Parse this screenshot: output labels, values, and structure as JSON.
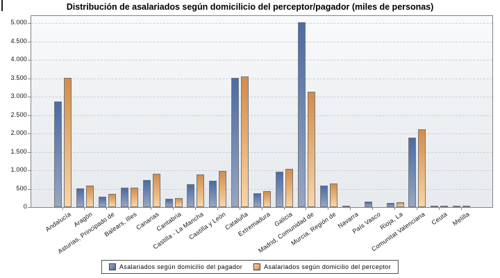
{
  "chart_data": {
    "type": "bar",
    "title": "Distribución de asalariados según domicilicio del perceptor/pagador (miles de personas)",
    "categories": [
      "Andalucía",
      "Aragón",
      "Asturias, Principado de",
      "Balears, Illes",
      "Canarias",
      "Cantabria",
      "Castilla - La Mancha",
      "Castilla y León",
      "Cataluña",
      "Extremadura",
      "Galicia",
      "Madrid, Comunidad de",
      "Murcia, Región de",
      "Navarra",
      "País Vasco",
      "Rioja, La",
      "Comunitat Valenciana",
      "Ceuta",
      "Melilla"
    ],
    "series": [
      {
        "name": "Asalariados según domicilio del pagador",
        "color": "#5277af",
        "color_top": "#4a6ba6",
        "color_bottom": "#97a7c2",
        "values": [
          2870,
          510,
          290,
          520,
          740,
          220,
          620,
          720,
          3500,
          370,
          960,
          5010,
          580,
          40,
          160,
          110,
          1890,
          20,
          20
        ]
      },
      {
        "name": "Asalariados según domicilio del perceptor",
        "color": "#e8a869",
        "color_top": "#d28c4b",
        "color_bottom": "#fad5a5",
        "values": [
          3510,
          590,
          360,
          530,
          910,
          250,
          880,
          990,
          3540,
          440,
          1040,
          3130,
          650,
          0,
          0,
          140,
          2110,
          40,
          40
        ]
      }
    ],
    "xlabel": "",
    "ylabel": "",
    "ylim": [
      0,
      5250
    ],
    "yticks": [
      0,
      500,
      1000,
      1500,
      2000,
      2500,
      3000,
      3500,
      4000,
      4500,
      5000
    ],
    "ytick_labels": [
      "0",
      "500",
      "1.000",
      "1.500",
      "2.000",
      "2.500",
      "3.000",
      "3.500",
      "4.000",
      "4.500",
      "5.000"
    ],
    "grid": "horizontal-dashed",
    "legend_position": "bottom-center",
    "plot_border_color": "#7f8285",
    "gridline_color": "#ccd0d5"
  }
}
